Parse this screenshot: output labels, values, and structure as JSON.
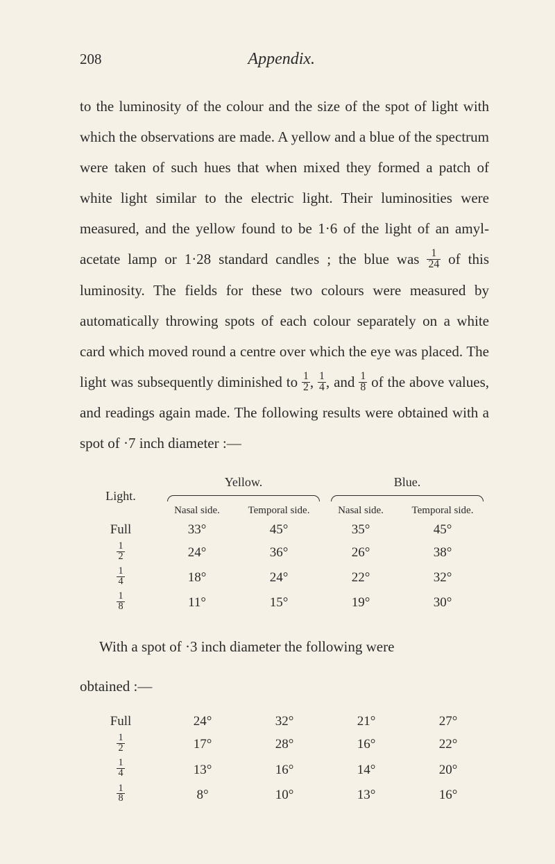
{
  "page": {
    "number": "208",
    "chapter": "Appendix."
  },
  "paragraphs": {
    "p1": "to the luminosity of the colour and the size of the spot of light with which the observations are made. A yellow and a blue of the spectrum were taken of such hues that when mixed they formed a patch of white light similar to the electric light. Their luminosities were measured, and the yellow found to be 1·6 of the light of an amyl-acetate lamp or 1·28 standard candles ; the blue was ",
    "p1b": " of this luminosity. The fields for these two colours were measured by automatically throwing spots of each colour separately on a white card which moved round a centre over which the eye was placed. The light was subsequently diminished to ",
    "p1c": ", ",
    "p1d": ", and ",
    "p1e": " of the above values, and readings again made. The following results were obtained with a spot of ·7 inch diameter :—",
    "p2": "With a spot of ·3 inch diameter the following were",
    "p2b": "obtained :—"
  },
  "fractions": {
    "f_1_24": {
      "num": "1",
      "den": "24"
    },
    "f_1_2": {
      "num": "1",
      "den": "2"
    },
    "f_1_4": {
      "num": "1",
      "den": "4"
    },
    "f_1_8": {
      "num": "1",
      "den": "8"
    }
  },
  "table1": {
    "lightLabel": "Light.",
    "yellowLabel": "Yellow.",
    "blueLabel": "Blue.",
    "nasalLabel": "Nasal side.",
    "temporalLabel": "Temporal side.",
    "rows": [
      {
        "light": "Full",
        "yn": "33°",
        "yt": "45°",
        "bn": "35°",
        "bt": "45°"
      },
      {
        "light": "frac_1_2",
        "yn": "24°",
        "yt": "36°",
        "bn": "26°",
        "bt": "38°"
      },
      {
        "light": "frac_1_4",
        "yn": "18°",
        "yt": "24°",
        "bn": "22°",
        "bt": "32°"
      },
      {
        "light": "frac_1_8",
        "yn": "11°",
        "yt": "15°",
        "bn": "19°",
        "bt": "30°"
      }
    ]
  },
  "table2": {
    "rows": [
      {
        "light": "Full",
        "c1": "24°",
        "c2": "32°",
        "c3": "21°",
        "c4": "27°"
      },
      {
        "light": "frac_1_2",
        "c1": "17°",
        "c2": "28°",
        "c3": "16°",
        "c4": "22°"
      },
      {
        "light": "frac_1_4",
        "c1": "13°",
        "c2": "16°",
        "c3": "14°",
        "c4": "20°"
      },
      {
        "light": "frac_1_8",
        "c1": "8°",
        "c2": "10°",
        "c3": "13°",
        "c4": "16°"
      }
    ]
  },
  "styling": {
    "background_color": "#f5f1e6",
    "text_color": "#2a2a2a",
    "body_font_size": 21,
    "line_height": 2.1,
    "table_font_size": 19
  }
}
